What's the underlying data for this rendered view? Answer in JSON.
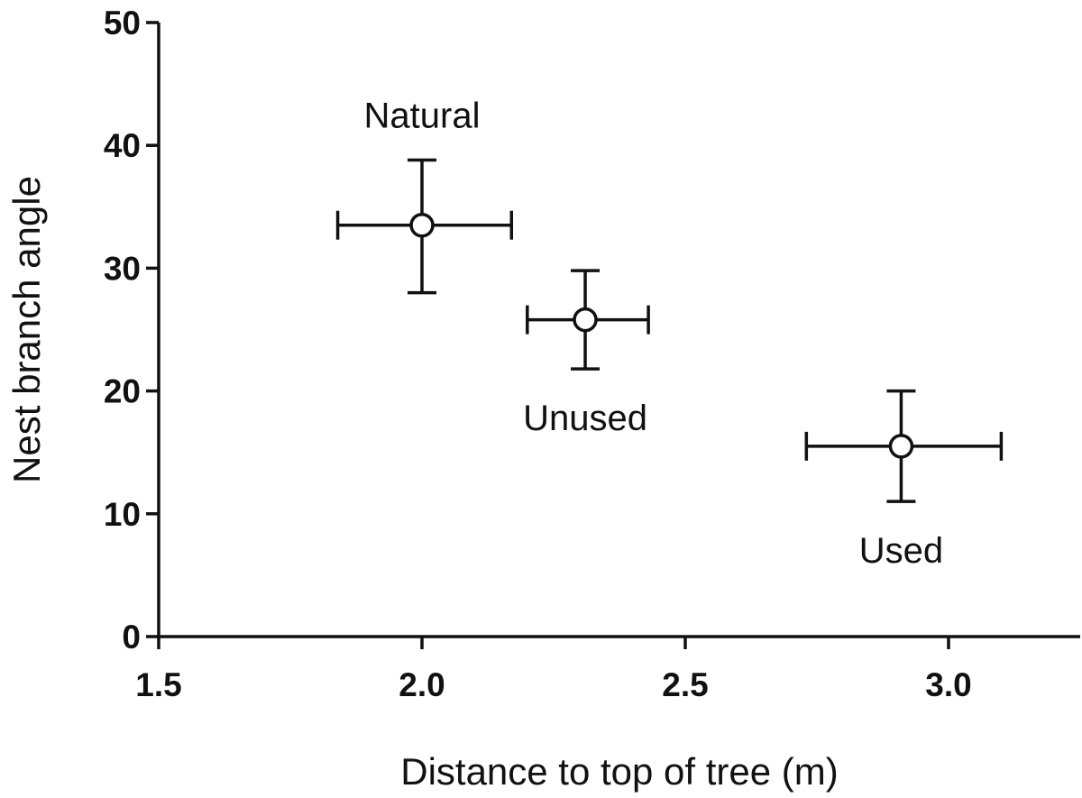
{
  "chart_data": {
    "type": "scatter",
    "xlabel": "Distance to top of tree (m)",
    "ylabel": "Nest branch angle",
    "xlim": [
      1.5,
      3.25
    ],
    "ylim": [
      0,
      50
    ],
    "x_ticks": [
      1.5,
      2.0,
      2.5,
      3.0
    ],
    "x_tick_labels": [
      "1.5",
      "2.0",
      "2.5",
      "3.0"
    ],
    "y_ticks": [
      0,
      10,
      20,
      30,
      40,
      50
    ],
    "y_tick_labels": [
      "0",
      "10",
      "20",
      "30",
      "40",
      "50"
    ],
    "grid": false,
    "marker": "open-circle",
    "points": [
      {
        "label": "Natural",
        "x": 2.0,
        "y": 33.5,
        "x_err": [
          1.84,
          2.17
        ],
        "y_err": [
          28.0,
          38.8
        ],
        "label_position": "above"
      },
      {
        "label": "Unused",
        "x": 2.31,
        "y": 25.8,
        "x_err": [
          2.2,
          2.43
        ],
        "y_err": [
          21.8,
          29.8
        ],
        "label_position": "below"
      },
      {
        "label": "Used",
        "x": 2.91,
        "y": 15.5,
        "x_err": [
          2.73,
          3.1
        ],
        "y_err": [
          11.0,
          20.0
        ],
        "label_position": "below"
      }
    ]
  }
}
